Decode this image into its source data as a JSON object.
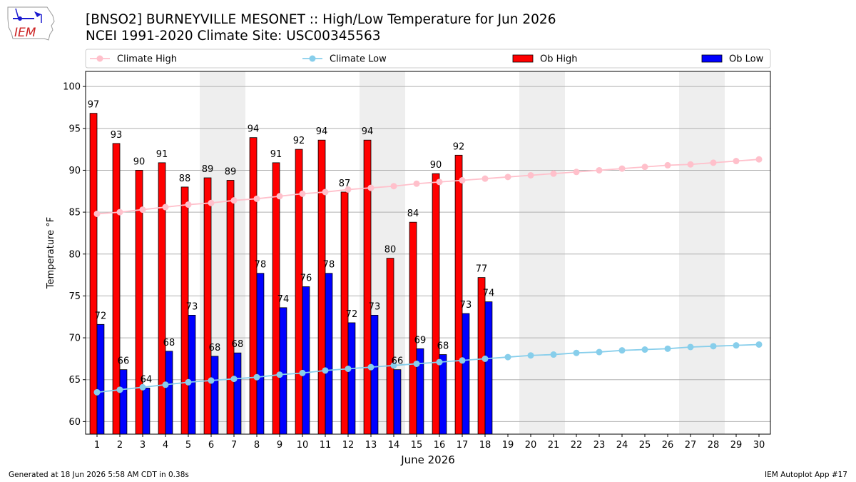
{
  "header": {
    "title": "[BNSO2] BURNEYVILLE MESONET :: High/Low Temperature for Jun 2026",
    "subtitle": "NCEI 1991-2020 Climate Site: USC00345563",
    "logo_text": "IEM"
  },
  "footer": {
    "generated": "Generated at 18 Jun 2026 5:58 AM CDT in 0.38s",
    "app": "IEM Autoplot App #17"
  },
  "colors": {
    "ob_high": "#ff0000",
    "ob_low": "#0000ff",
    "climate_high": "#ffc0cb",
    "climate_low": "#87ceeb",
    "weekend_shade": "#eeeeee",
    "grid": "#b0b0b0"
  },
  "chart_data": {
    "type": "bar",
    "xlabel": "June 2026",
    "ylabel": "Temperature °F",
    "ylim": [
      58.5,
      101.8
    ],
    "yticks": [
      60,
      65,
      70,
      75,
      80,
      85,
      90,
      95,
      100
    ],
    "grid": "horizontal",
    "legend_position": "top",
    "days": [
      1,
      2,
      3,
      4,
      5,
      6,
      7,
      8,
      9,
      10,
      11,
      12,
      13,
      14,
      15,
      16,
      17,
      18,
      19,
      20,
      21,
      22,
      23,
      24,
      25,
      26,
      27,
      28,
      29,
      30
    ],
    "weekend_days": [
      6,
      7,
      13,
      14,
      20,
      21,
      27,
      28
    ],
    "series": [
      {
        "name": "Climate High",
        "kind": "line",
        "values": [
          84.8,
          85.0,
          85.3,
          85.6,
          85.9,
          86.1,
          86.4,
          86.6,
          86.9,
          87.2,
          87.4,
          87.7,
          87.9,
          88.1,
          88.4,
          88.6,
          88.8,
          89.0,
          89.2,
          89.4,
          89.6,
          89.8,
          90.0,
          90.2,
          90.4,
          90.6,
          90.7,
          90.9,
          91.1,
          91.3
        ]
      },
      {
        "name": "Climate Low",
        "kind": "line",
        "values": [
          63.5,
          63.8,
          64.1,
          64.4,
          64.7,
          64.9,
          65.1,
          65.3,
          65.6,
          65.8,
          66.1,
          66.3,
          66.5,
          66.7,
          66.9,
          67.1,
          67.3,
          67.5,
          67.7,
          67.9,
          68.0,
          68.2,
          68.3,
          68.5,
          68.6,
          68.7,
          68.9,
          69.0,
          69.1,
          69.2
        ]
      },
      {
        "name": "Ob High",
        "kind": "bar",
        "values": [
          96.8,
          93.2,
          90.0,
          90.9,
          88.0,
          89.1,
          88.8,
          93.9,
          90.9,
          92.5,
          93.6,
          87.4,
          93.6,
          79.5,
          83.8,
          89.6,
          91.8,
          77.2
        ],
        "labels": [
          "97",
          "93",
          "90",
          "91",
          "88",
          "89",
          "89",
          "94",
          "91",
          "92",
          "94",
          "87",
          "94",
          "80",
          "84",
          "90",
          "92",
          "77"
        ]
      },
      {
        "name": "Ob Low",
        "kind": "bar",
        "values": [
          71.6,
          66.2,
          64.0,
          68.4,
          72.7,
          67.8,
          68.2,
          77.7,
          73.6,
          76.1,
          77.7,
          71.8,
          72.7,
          66.2,
          68.7,
          68.0,
          72.9,
          74.3
        ],
        "labels": [
          "72",
          "66",
          "64",
          "68",
          "73",
          "68",
          "68",
          "78",
          "74",
          "76",
          "78",
          "72",
          "73",
          "66",
          "69",
          "68",
          "73",
          "74"
        ]
      }
    ]
  }
}
